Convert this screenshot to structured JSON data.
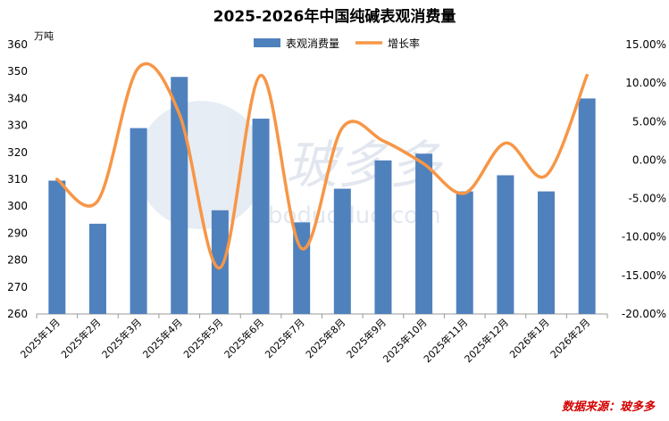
{
  "chart_data": {
    "type": "bar+line",
    "title": "2025-2026年中国纯碱表观消费量",
    "unit_left": "万吨",
    "categories": [
      "2025年1月",
      "2025年2月",
      "2025年3月",
      "2025年4月",
      "2025年5月",
      "2025年6月",
      "2025年7月",
      "2025年8月",
      "2025年9月",
      "2025年10月",
      "2025年11月",
      "2025年12月",
      "2026年1月",
      "2026年2月"
    ],
    "series": [
      {
        "name": "表观消费量",
        "type": "bar",
        "axis": "left",
        "color": "#4f81bd",
        "values": [
          309.5,
          293.5,
          329,
          348,
          298.5,
          332.5,
          294,
          306.5,
          317,
          319.5,
          305.5,
          311.5,
          305.5,
          340
        ]
      },
      {
        "name": "增长率",
        "type": "line",
        "axis": "right",
        "color": "#f79646",
        "unit": "%",
        "values": [
          -2.5,
          -5.3,
          12.0,
          6.0,
          -14.0,
          11.0,
          -11.5,
          4.2,
          2.5,
          -0.5,
          -4.3,
          2.2,
          -2.0,
          11.0
        ]
      }
    ],
    "ylim_left": [
      260,
      360
    ],
    "yticks_left": [
      "260",
      "270",
      "280",
      "290",
      "300",
      "310",
      "320",
      "330",
      "340",
      "350",
      "360"
    ],
    "ylim_right": [
      -20,
      15
    ],
    "yticks_right": [
      "-20.00%",
      "-15.00%",
      "-10.00%",
      "-5.00%",
      "0.00%",
      "5.00%",
      "10.00%",
      "15.00%"
    ],
    "legend_position": "top",
    "grid": false,
    "watermark": "玻多多 boduoduo.com",
    "source": "数据来源：玻多多"
  }
}
